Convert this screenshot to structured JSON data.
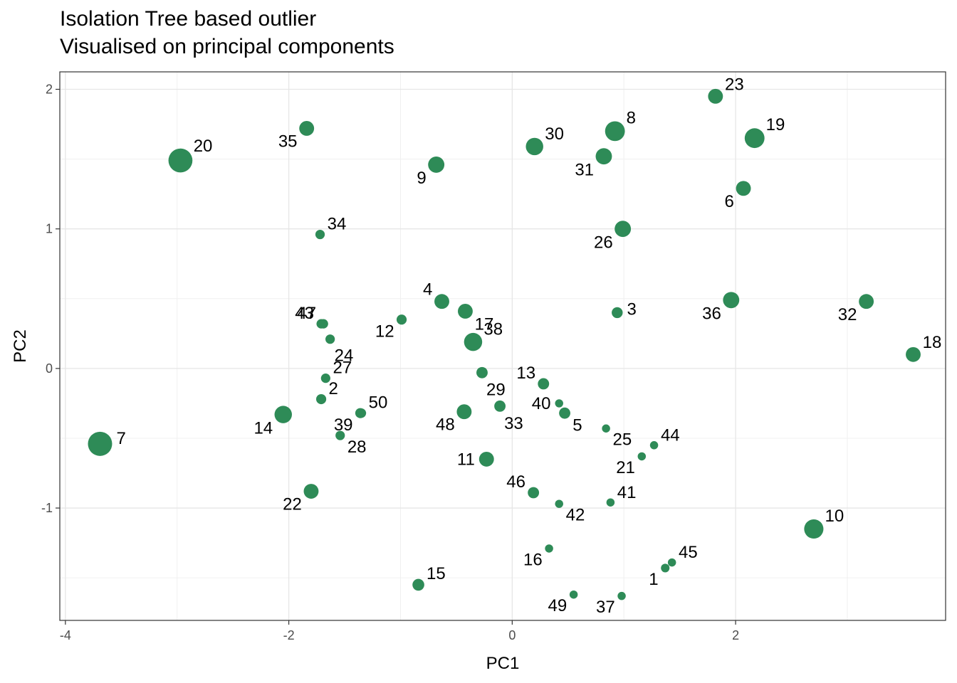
{
  "chart_data": {
    "type": "scatter",
    "title": "Isolation Tree based outlier",
    "subtitle": "Visualised on principal components",
    "xlabel": "PC1",
    "ylabel": "PC2",
    "xlim": [
      -4.05,
      3.88
    ],
    "ylim": [
      -1.805,
      2.125
    ],
    "xticks": [
      -4,
      -2,
      0,
      2
    ],
    "yticks": [
      -1,
      0,
      1,
      2
    ],
    "grid": true,
    "point_color": "#2e8b57",
    "points": [
      {
        "label": "1",
        "x": 1.37,
        "y": -1.43,
        "score": 0.06
      },
      {
        "label": "2",
        "x": -1.71,
        "y": -0.22,
        "score": 0.1
      },
      {
        "label": "3",
        "x": 0.94,
        "y": 0.4,
        "score": 0.13
      },
      {
        "label": "4",
        "x": -0.63,
        "y": 0.48,
        "score": 0.3
      },
      {
        "label": "5",
        "x": 0.47,
        "y": -0.32,
        "score": 0.14
      },
      {
        "label": "6",
        "x": 2.07,
        "y": 1.29,
        "score": 0.3
      },
      {
        "label": "7",
        "x": -3.69,
        "y": -0.54,
        "score": 1.0
      },
      {
        "label": "8",
        "x": 0.92,
        "y": 1.7,
        "score": 0.62
      },
      {
        "label": "9",
        "x": -0.68,
        "y": 1.46,
        "score": 0.38
      },
      {
        "label": "10",
        "x": 2.7,
        "y": -1.15,
        "score": 0.58
      },
      {
        "label": "11",
        "x": -0.23,
        "y": -0.65,
        "score": 0.3
      },
      {
        "label": "12",
        "x": -0.99,
        "y": 0.35,
        "score": 0.1
      },
      {
        "label": "13",
        "x": 0.28,
        "y": -0.11,
        "score": 0.14
      },
      {
        "label": "14",
        "x": -2.05,
        "y": -0.33,
        "score": 0.45
      },
      {
        "label": "15",
        "x": -0.84,
        "y": -1.55,
        "score": 0.16
      },
      {
        "label": "16",
        "x": 0.33,
        "y": -1.29,
        "score": 0.05
      },
      {
        "label": "17",
        "x": -0.42,
        "y": 0.41,
        "score": 0.3
      },
      {
        "label": "18",
        "x": 3.59,
        "y": 0.1,
        "score": 0.3
      },
      {
        "label": "19",
        "x": 2.17,
        "y": 1.65,
        "score": 0.62
      },
      {
        "label": "20",
        "x": -2.97,
        "y": 1.49,
        "score": 0.98
      },
      {
        "label": "21",
        "x": 1.16,
        "y": -0.63,
        "score": 0.05
      },
      {
        "label": "22",
        "x": -1.8,
        "y": -0.88,
        "score": 0.3
      },
      {
        "label": "23",
        "x": 1.82,
        "y": 1.95,
        "score": 0.3
      },
      {
        "label": "24",
        "x": -1.63,
        "y": 0.21,
        "score": 0.08
      },
      {
        "label": "25",
        "x": 0.84,
        "y": -0.43,
        "score": 0.05
      },
      {
        "label": "26",
        "x": 0.99,
        "y": 1.0,
        "score": 0.38
      },
      {
        "label": "27",
        "x": -1.67,
        "y": -0.07,
        "score": 0.08
      },
      {
        "label": "28",
        "x": -1.54,
        "y": -0.48,
        "score": 0.08
      },
      {
        "label": "29",
        "x": -0.27,
        "y": -0.03,
        "score": 0.14
      },
      {
        "label": "30",
        "x": 0.2,
        "y": 1.59,
        "score": 0.45
      },
      {
        "label": "31",
        "x": 0.82,
        "y": 1.52,
        "score": 0.38
      },
      {
        "label": "32",
        "x": 3.17,
        "y": 0.48,
        "score": 0.3
      },
      {
        "label": "33",
        "x": -0.11,
        "y": -0.27,
        "score": 0.14
      },
      {
        "label": "34",
        "x": -1.72,
        "y": 0.96,
        "score": 0.08
      },
      {
        "label": "35",
        "x": -1.84,
        "y": 1.72,
        "score": 0.3
      },
      {
        "label": "36",
        "x": 1.96,
        "y": 0.49,
        "score": 0.38
      },
      {
        "label": "37",
        "x": 0.98,
        "y": -1.63,
        "score": 0.05
      },
      {
        "label": "38",
        "x": -0.35,
        "y": 0.19,
        "score": 0.5
      },
      {
        "label": "39",
        "x": -1.36,
        "y": -0.32,
        "score": 0.1
      },
      {
        "label": "40",
        "x": 0.42,
        "y": -0.25,
        "score": 0.05
      },
      {
        "label": "41",
        "x": 0.88,
        "y": -0.96,
        "score": 0.05
      },
      {
        "label": "42",
        "x": 0.42,
        "y": -0.97,
        "score": 0.05
      },
      {
        "label": "43",
        "x": -1.71,
        "y": 0.32,
        "score": 0.08
      },
      {
        "label": "44",
        "x": 1.27,
        "y": -0.55,
        "score": 0.05
      },
      {
        "label": "45",
        "x": 1.43,
        "y": -1.39,
        "score": 0.05
      },
      {
        "label": "46",
        "x": 0.19,
        "y": -0.89,
        "score": 0.14
      },
      {
        "label": "47",
        "x": -1.69,
        "y": 0.32,
        "score": 0.08
      },
      {
        "label": "48",
        "x": -0.43,
        "y": -0.31,
        "score": 0.3
      },
      {
        "label": "49",
        "x": 0.55,
        "y": -1.62,
        "score": 0.05
      },
      {
        "label": "50",
        "x": -1.35,
        "y": -0.32,
        "score": 0.08
      }
    ]
  }
}
